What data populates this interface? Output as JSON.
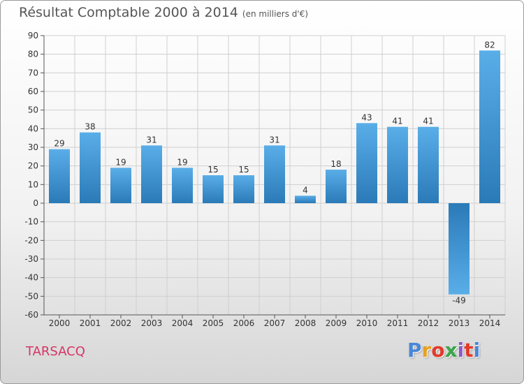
{
  "header": {
    "title": "Résultat Comptable 2000 à 2014",
    "unit": "(en milliers d'€)"
  },
  "footer": {
    "commune": "TARSACQ",
    "logo_text": "Proxiti"
  },
  "colors": {
    "bar_light": "#5aaee8",
    "bar_dark": "#2a7ab8",
    "commune": "#d63566",
    "logo_letters": [
      "#4a86d6",
      "#e8a020",
      "#e23a2a",
      "#3aa64a",
      "#8a5cc6",
      "#e23a2a",
      "#4a86d6"
    ]
  },
  "chart_data": {
    "type": "bar",
    "categories": [
      "2000",
      "2001",
      "2002",
      "2003",
      "2004",
      "2005",
      "2006",
      "2007",
      "2008",
      "2009",
      "2010",
      "2011",
      "2012",
      "2013",
      "2014"
    ],
    "values": [
      29,
      38,
      19,
      31,
      19,
      15,
      15,
      31,
      4,
      18,
      43,
      41,
      41,
      -49,
      82
    ],
    "data_labels": [
      "29",
      "38",
      "19",
      "31",
      "19",
      "15",
      "15",
      "31",
      "4",
      "18",
      "43",
      "41",
      "41",
      "-49",
      "82"
    ],
    "ylim": [
      -60,
      90
    ],
    "yticks": [
      -60,
      -50,
      -40,
      -30,
      -20,
      -10,
      0,
      10,
      20,
      30,
      40,
      50,
      60,
      70,
      80,
      90
    ],
    "grid": true,
    "title": "Résultat Comptable 2000 à 2014",
    "xlabel": "",
    "ylabel": ""
  }
}
